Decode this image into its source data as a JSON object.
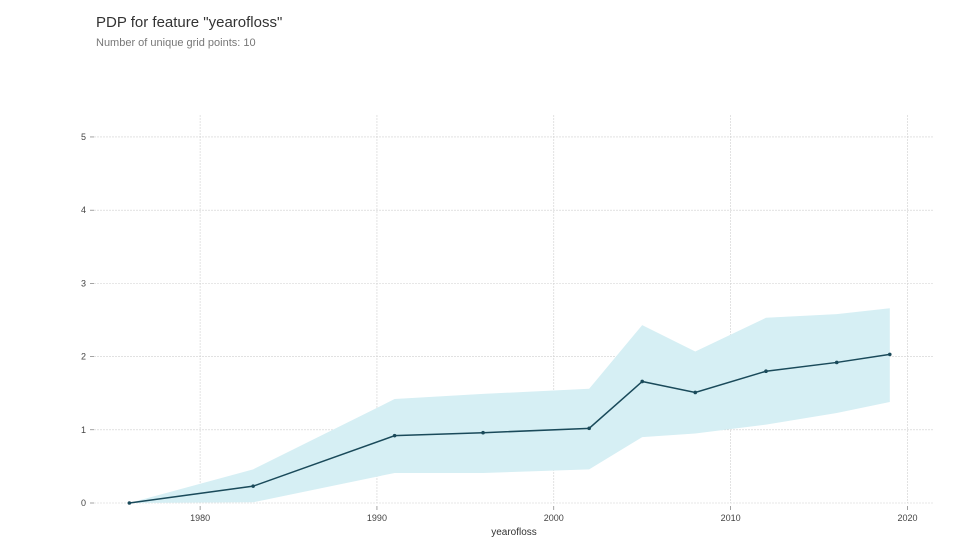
{
  "title": "PDP for feature \"yearofloss\"",
  "subtitle": "Number of unique grid points: 10",
  "chart_data": {
    "type": "line",
    "xlabel": "yearofloss",
    "ylabel": "",
    "xlim": [
      1974,
      2021.5
    ],
    "ylim": [
      0,
      5.3
    ],
    "xticks": [
      1980,
      1990,
      2000,
      2010,
      2020
    ],
    "yticks": [
      0,
      1,
      2,
      3,
      4,
      5
    ],
    "grid": true,
    "x": [
      1976,
      1983,
      1991,
      1996,
      2002,
      2005,
      2008,
      2012,
      2016,
      2019
    ],
    "y": [
      0.0,
      0.23,
      0.92,
      0.96,
      1.02,
      1.66,
      1.51,
      1.8,
      1.92,
      2.03
    ],
    "upper": [
      0.0,
      0.46,
      1.42,
      1.49,
      1.56,
      2.43,
      2.07,
      2.53,
      2.58,
      2.66
    ],
    "lower": [
      0.0,
      0.01,
      0.41,
      0.41,
      0.46,
      0.9,
      0.95,
      1.07,
      1.23,
      1.38
    ],
    "colors": {
      "line": "#1a4a5a",
      "band": "#d6eff4",
      "grid": "#cfcfcf"
    }
  }
}
